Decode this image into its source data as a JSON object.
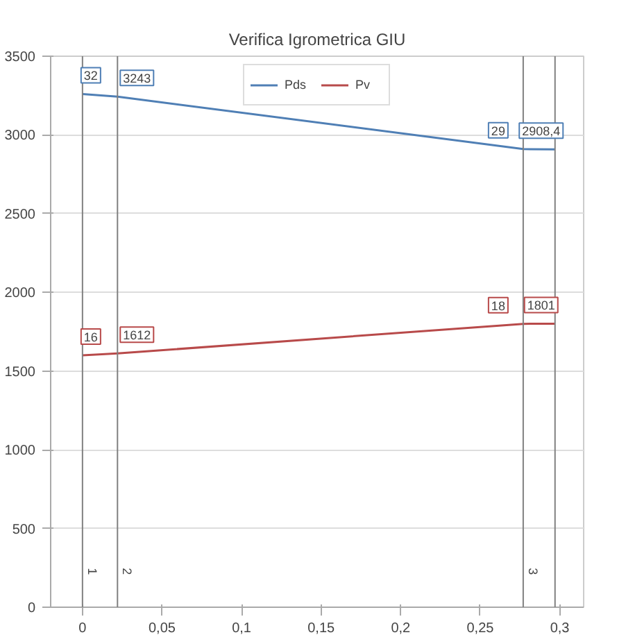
{
  "chart_data": {
    "type": "line",
    "title": "Verifica Igrometrica GIU",
    "x": [
      0,
      0.022,
      0.277,
      0.297
    ],
    "series": [
      {
        "name": "Pds",
        "color": "#4f7fb5",
        "values": [
          3260,
          3243,
          2910,
          2908.4
        ],
        "value_labels": [
          null,
          "3243",
          null,
          "2908,4"
        ]
      },
      {
        "name": "Pv",
        "color": "#b84a4a",
        "values": [
          1600,
          1612,
          1800,
          1801
        ],
        "value_labels": [
          null,
          "1612",
          null,
          "1801"
        ]
      }
    ],
    "annotations": [
      "32",
      "29",
      "16",
      "18",
      {
        "text": "1",
        "x": 0,
        "y": 250
      },
      {
        "text": "2",
        "x": 0.022,
        "y": 250
      },
      {
        "text": "3",
        "x": 0.277,
        "y": 250
      }
    ],
    "xlim": [
      -0.02,
      0.315
    ],
    "ylim": [
      0,
      3500
    ],
    "xticks": [
      0,
      {
        "value": 0.05,
        "label": "0,05"
      },
      {
        "value": 0.1,
        "label": "0,1"
      },
      {
        "value": 0.15,
        "label": "0,15"
      },
      {
        "value": 0.2,
        "label": "0,2"
      },
      {
        "value": 0.25,
        "label": "0,25"
      },
      {
        "value": 0.3,
        "label": "0,3"
      }
    ],
    "yticks": [
      0,
      500,
      1000,
      1500,
      2000,
      2500,
      3000,
      3500
    ],
    "ref_lines": [
      {
        "axis": "x",
        "value": 0,
        "color": "#808080"
      },
      {
        "axis": "x",
        "value": 0.022,
        "color": "#808080"
      },
      {
        "axis": "x",
        "value": 0.277,
        "color": "#808080"
      },
      {
        "axis": "x",
        "value": 0.297,
        "color": "#808080"
      }
    ],
    "grid": "y",
    "legend": "top",
    "marker": "none",
    "line_style": "solid"
  }
}
